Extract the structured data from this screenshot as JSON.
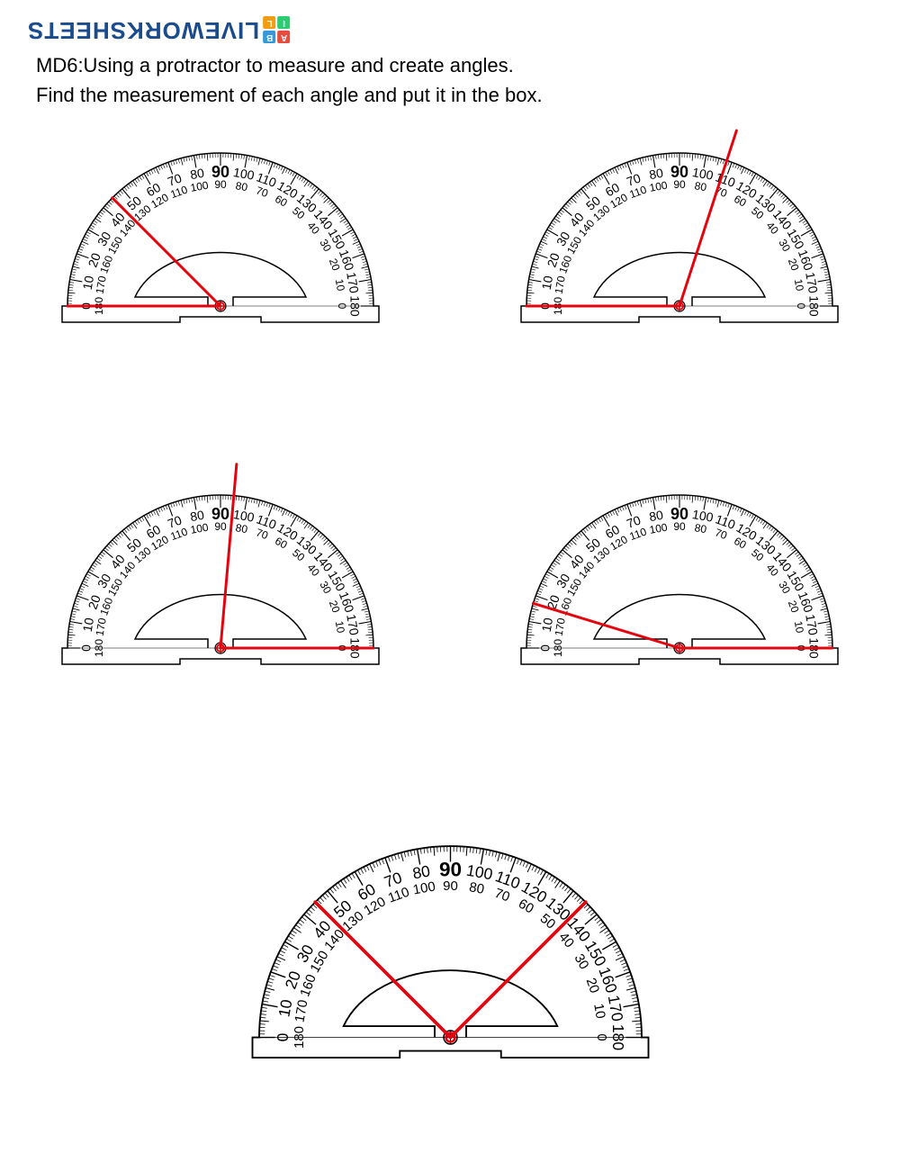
{
  "watermark": {
    "text": "LIVEWORKSHEETS",
    "color": "#1a4b8c",
    "grid_colors": [
      "#e74c3c",
      "#3498db",
      "#2ecc71",
      "#f39c12"
    ],
    "grid_letters": [
      "A",
      "B",
      "I",
      "L"
    ]
  },
  "instructions": {
    "line1": "MD6:Using a protractor to measure and create angles.",
    "line2": "Find the measurement of each angle and put it in the box."
  },
  "protractor_style": {
    "stroke": "#000000",
    "fill": "#ffffff",
    "tick_major_len": 14,
    "tick_minor_len": 8,
    "tick_tiny_len": 5,
    "outer_radius": 170,
    "inner_radius": 100,
    "label_fontsize_outer": 14,
    "label_fontsize_inner": 12,
    "angle_line_color": "#e3040e",
    "angle_line_width": 3
  },
  "protractors": [
    {
      "id": "p1",
      "scale": 1.0,
      "rays": [
        {
          "deg": 0,
          "extend": 0
        },
        {
          "deg": 45,
          "extend": 0
        }
      ]
    },
    {
      "id": "p2",
      "scale": 1.0,
      "rays": [
        {
          "deg": 0,
          "extend": 0
        },
        {
          "deg": 108,
          "extend": 35
        }
      ]
    },
    {
      "id": "p3",
      "scale": 1.0,
      "rays": [
        {
          "deg": 180,
          "extend": 0
        },
        {
          "deg": 95,
          "extend": 35
        }
      ]
    },
    {
      "id": "p4",
      "scale": 1.0,
      "rays": [
        {
          "deg": 180,
          "extend": 0
        },
        {
          "deg": 17,
          "extend": 0
        }
      ]
    },
    {
      "id": "p5",
      "scale": 1.25,
      "rays": [
        {
          "deg": 45,
          "extend": 0
        },
        {
          "deg": 135,
          "extend": 0
        }
      ]
    }
  ],
  "scale_labels": {
    "outer": [
      "0",
      "10",
      "20",
      "30",
      "40",
      "50",
      "60",
      "70",
      "80",
      "90",
      "100",
      "110",
      "120",
      "130",
      "140",
      "150",
      "160",
      "170",
      "180"
    ],
    "inner": [
      "180",
      "170",
      "160",
      "150",
      "140",
      "130",
      "120",
      "110",
      "100",
      "90",
      "80",
      "70",
      "60",
      "50",
      "40",
      "30",
      "20",
      "10",
      "0"
    ]
  }
}
